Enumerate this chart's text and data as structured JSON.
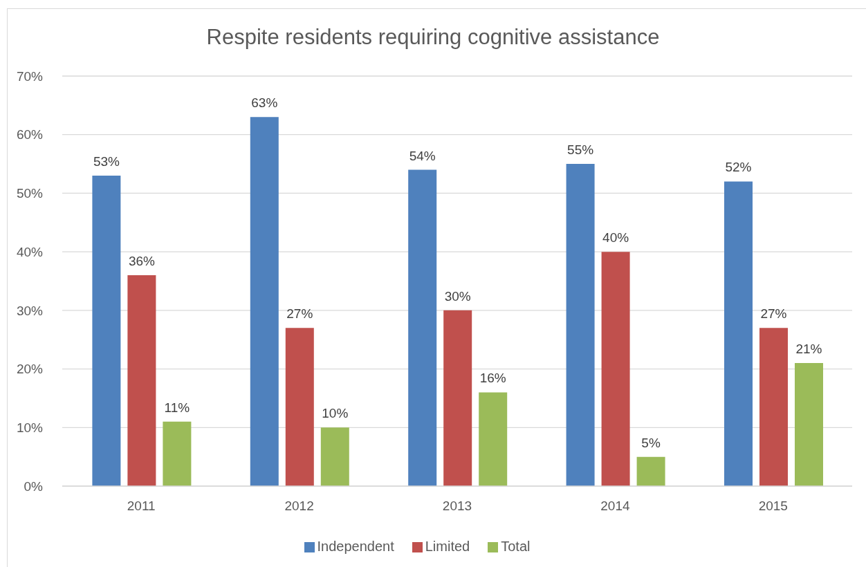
{
  "chart_data": {
    "type": "bar",
    "title": "Respite residents requiring cognitive assistance",
    "categories": [
      "2011",
      "2012",
      "2013",
      "2014",
      "2015"
    ],
    "series": [
      {
        "name": "Independent",
        "color": "#4f81bd",
        "values": [
          53,
          63,
          54,
          55,
          52
        ],
        "value_labels": [
          "53%",
          "63%",
          "54%",
          "55%",
          "52%"
        ]
      },
      {
        "name": "Limited",
        "color": "#c0504d",
        "values": [
          36,
          27,
          30,
          40,
          27
        ],
        "value_labels": [
          "36%",
          "27%",
          "30%",
          "40%",
          "27%"
        ]
      },
      {
        "name": "Total",
        "color": "#9bbb59",
        "values": [
          11,
          10,
          16,
          5,
          21
        ],
        "value_labels": [
          "11%",
          "10%",
          "16%",
          "5%",
          "21%"
        ]
      }
    ],
    "ylim": [
      0,
      70
    ],
    "yticks": [
      {
        "value": 0,
        "label": "0%"
      },
      {
        "value": 10,
        "label": "10%"
      },
      {
        "value": 20,
        "label": "20%"
      },
      {
        "value": 30,
        "label": "30%"
      },
      {
        "value": 40,
        "label": "40%"
      },
      {
        "value": 50,
        "label": "50%"
      },
      {
        "value": 60,
        "label": "60%"
      },
      {
        "value": 70,
        "label": "70%"
      }
    ],
    "grid": "y",
    "legend": "bottom"
  }
}
